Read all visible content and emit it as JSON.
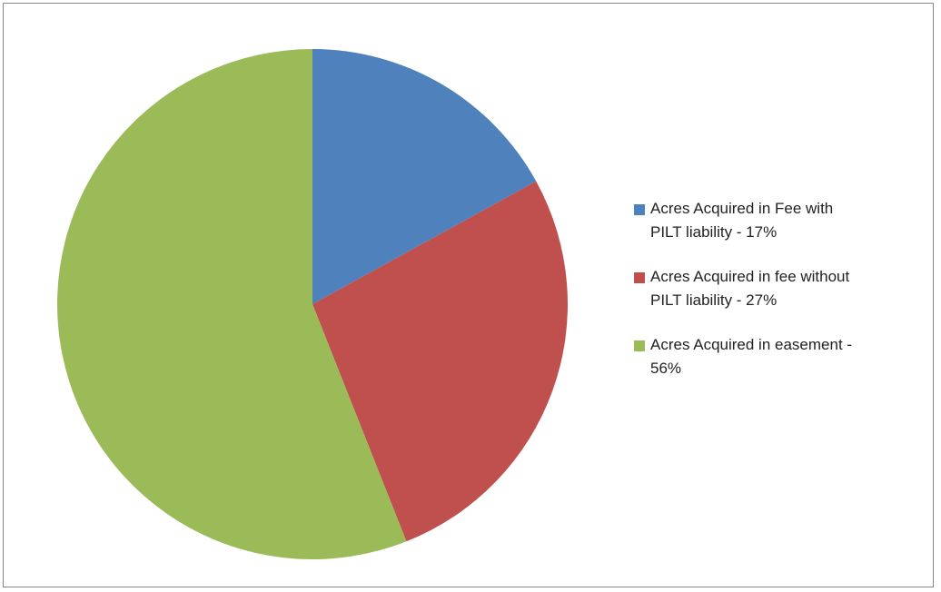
{
  "chart_data": {
    "type": "pie",
    "series": [
      {
        "name": "Acres Acquired in Fee with PILT liability - 17%",
        "color": "#4f81bd"
      },
      {
        "name": "Acres Acquired in fee without PILT liability - 27%",
        "color": "#c0504d"
      },
      {
        "name": "Acres Acquired in easement - 56%",
        "color": "#9bbb59"
      }
    ],
    "values": [
      17,
      27,
      56
    ],
    "legend": "right"
  }
}
